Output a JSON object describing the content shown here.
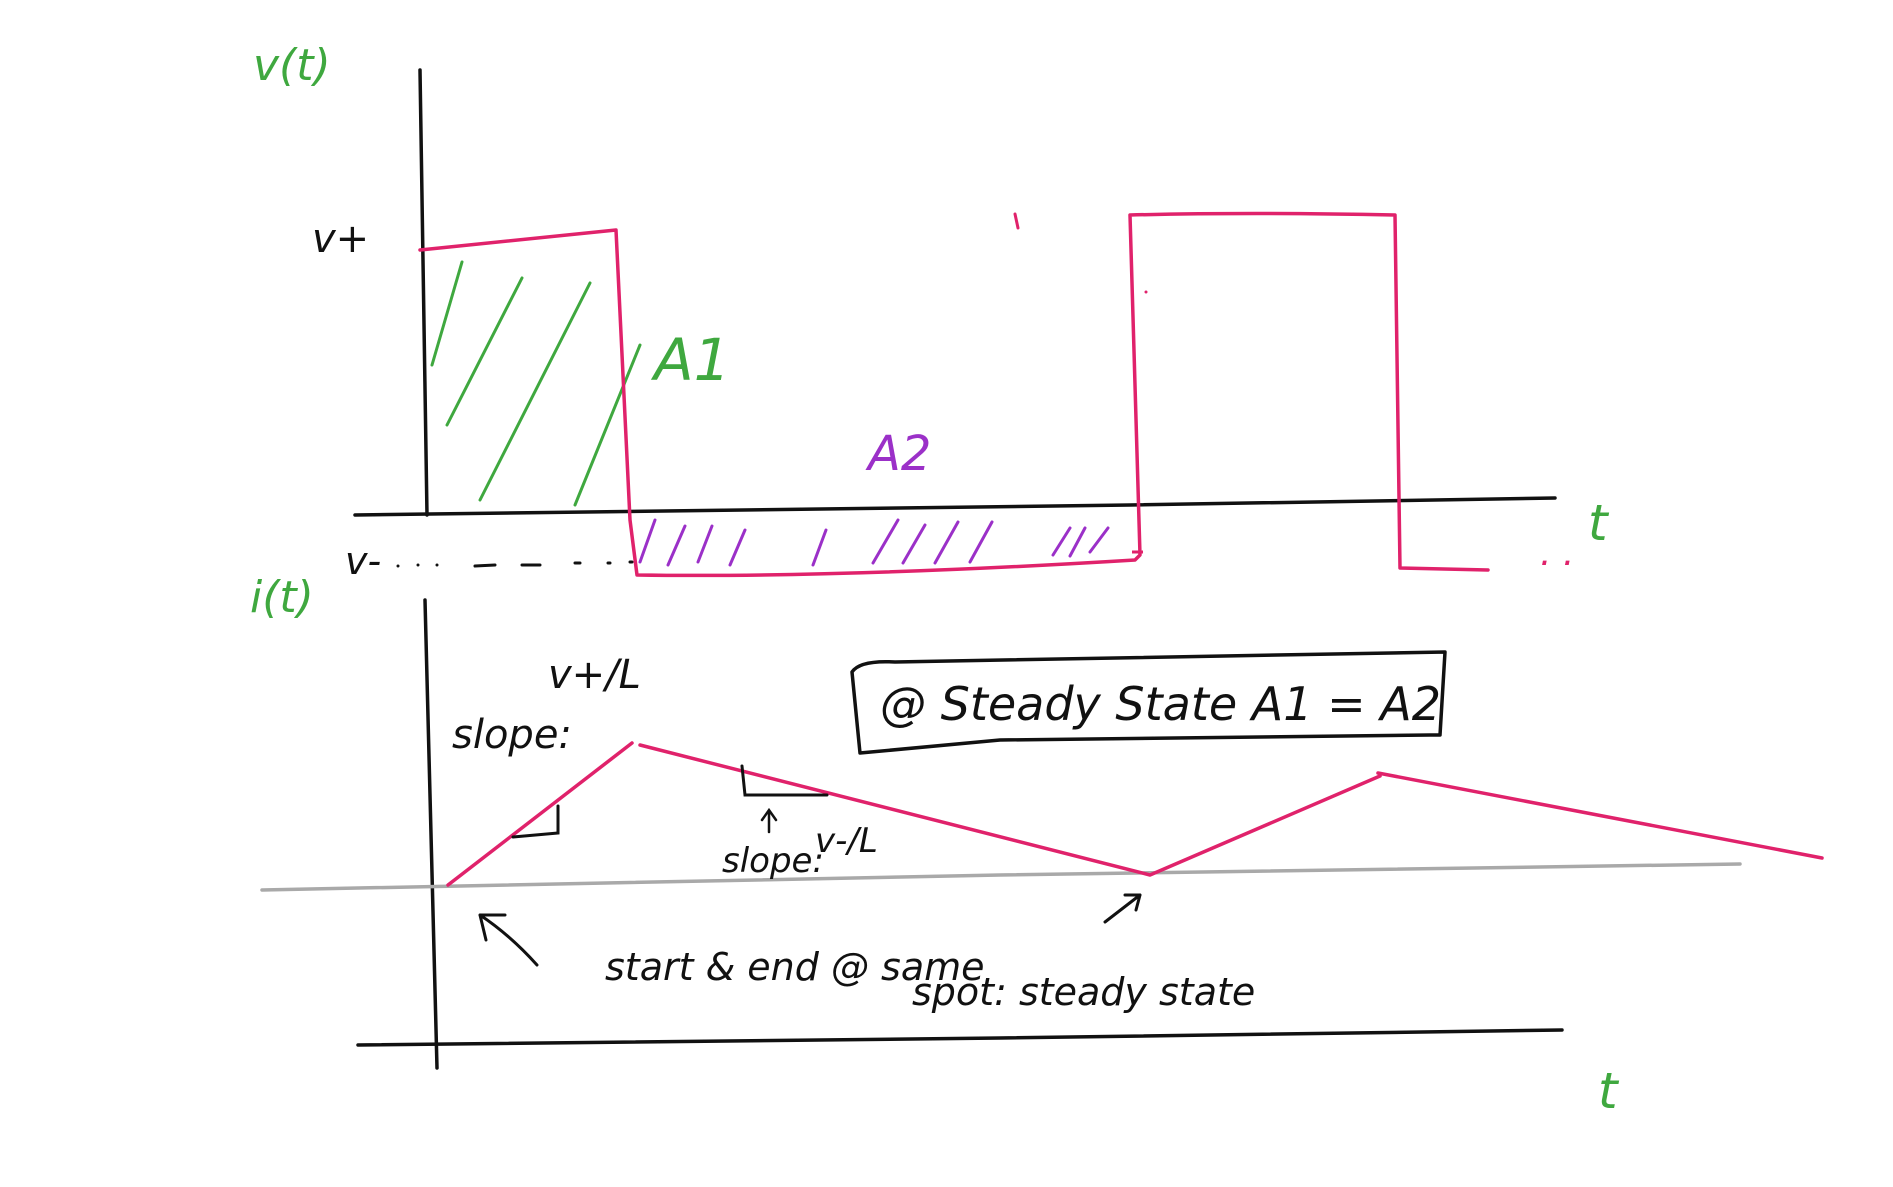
{
  "colors": {
    "ink": "#111111",
    "waveform": "#e0226b",
    "label_green": "#3fa83f",
    "area_purple": "#9b30c8",
    "baseline_gray": "#a9a9a9"
  },
  "voltage_plot": {
    "axis_label": "v(t)",
    "level_high": "v+",
    "level_low": "v-",
    "time_label": "t",
    "area_positive": "A1",
    "area_negative": "A2",
    "continuation": ". ."
  },
  "current_plot": {
    "axis_label": "i(t)",
    "time_label": "t",
    "rise_slope_label": "slope:",
    "rise_slope_value": "v+/L",
    "fall_slope_label": "slope:",
    "fall_slope_value": "v-/L",
    "note_line_1": "start & end @ same",
    "note_line_2": "spot: steady state"
  },
  "callout": {
    "text": "@ Steady State  A1 = A2"
  }
}
